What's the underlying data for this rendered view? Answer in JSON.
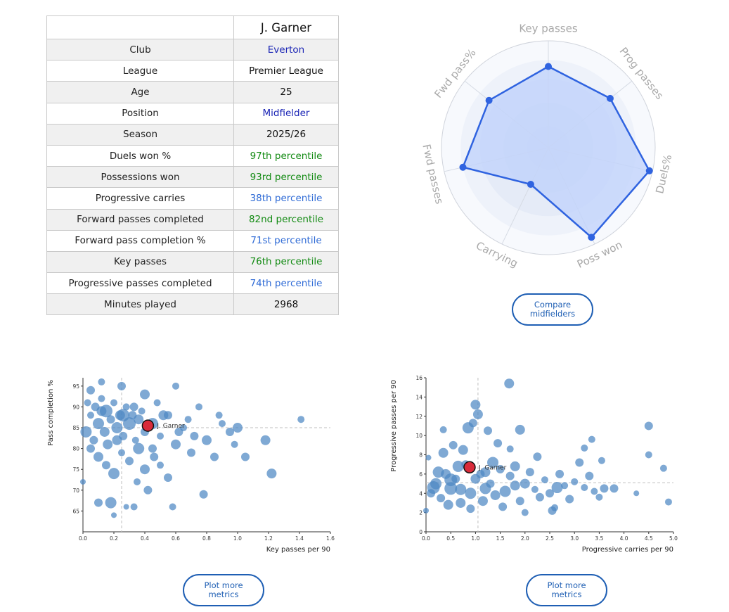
{
  "player": {
    "name": "J. Garner"
  },
  "table": {
    "rows": [
      {
        "label": "Club",
        "value": "Everton",
        "style": "link"
      },
      {
        "label": "League",
        "value": "Premier League",
        "style": "plain"
      },
      {
        "label": "Age",
        "value": "25",
        "style": "plain"
      },
      {
        "label": "Position",
        "value": "Midfielder",
        "style": "link"
      },
      {
        "label": "Season",
        "value": "2025/26",
        "style": "plain"
      },
      {
        "label": "Duels won %",
        "value": "97th percentile",
        "style": "pct-high"
      },
      {
        "label": "Possessions won",
        "value": "93rd percentile",
        "style": "pct-high"
      },
      {
        "label": "Progressive carries",
        "value": "38th percentile",
        "style": "pct-mid"
      },
      {
        "label": "Forward passes completed",
        "value": "82nd percentile",
        "style": "pct-high"
      },
      {
        "label": "Forward pass completion %",
        "value": "71st percentile",
        "style": "pct-mid"
      },
      {
        "label": "Key passes",
        "value": "76th percentile",
        "style": "pct-high"
      },
      {
        "label": "Progressive passes completed",
        "value": "74th percentile",
        "style": "pct-mid"
      },
      {
        "label": "Minutes played",
        "value": "2968",
        "style": "plain"
      }
    ]
  },
  "buttons": {
    "compare": "Compare midfielders",
    "plot_more_1": "Plot more metrics",
    "plot_more_2": "Plot more metrics"
  },
  "colors": {
    "link": "#1a24b5",
    "pct_high": "#128a12",
    "pct_mid": "#2f6bd6",
    "radar_line": "#2f63e0",
    "radar_fill": "#c2d3fb",
    "bubble": "#4d88c4",
    "highlight": "#d92b3a",
    "button": "#1f5fb4"
  },
  "chart_data": [
    {
      "type": "radar",
      "title": "",
      "axes": [
        "Key passes",
        "Prog passes",
        "Duels%",
        "Poss won",
        "Carrying",
        "Fwd passes",
        "Fwd pass%"
      ],
      "values": [
        76,
        74,
        97,
        93,
        38,
        82,
        71
      ],
      "range": [
        0,
        100
      ]
    },
    {
      "type": "scatter",
      "title": "",
      "xlabel": "Key passes per 90",
      "ylabel": "Pass completion %",
      "xlim": [
        0,
        1.6
      ],
      "ylim": [
        60,
        97
      ],
      "xticks": [
        "0.0",
        "0.2",
        "0.4",
        "0.6",
        "0.8",
        "1.0",
        "1.2",
        "1.4",
        "1.6"
      ],
      "yticks": [
        "65",
        "70",
        "75",
        "80",
        "85",
        "90",
        "95"
      ],
      "reference_lines": {
        "x": 0.25,
        "y": 85
      },
      "highlight": {
        "label": "J. Garner",
        "x": 0.42,
        "y": 85.5
      },
      "points": [
        {
          "x": 0.05,
          "y": 88,
          "s": 5
        },
        {
          "x": 0.08,
          "y": 90,
          "s": 6
        },
        {
          "x": 0.1,
          "y": 86,
          "s": 8
        },
        {
          "x": 0.12,
          "y": 92,
          "s": 5
        },
        {
          "x": 0.14,
          "y": 84,
          "s": 7
        },
        {
          "x": 0.15,
          "y": 89,
          "s": 9
        },
        {
          "x": 0.18,
          "y": 87,
          "s": 6
        },
        {
          "x": 0.2,
          "y": 91,
          "s": 5
        },
        {
          "x": 0.22,
          "y": 85,
          "s": 8
        },
        {
          "x": 0.24,
          "y": 88,
          "s": 7
        },
        {
          "x": 0.26,
          "y": 83,
          "s": 6
        },
        {
          "x": 0.28,
          "y": 90,
          "s": 5
        },
        {
          "x": 0.3,
          "y": 86,
          "s": 9
        },
        {
          "x": 0.32,
          "y": 88,
          "s": 6
        },
        {
          "x": 0.34,
          "y": 82,
          "s": 5
        },
        {
          "x": 0.36,
          "y": 87,
          "s": 7
        },
        {
          "x": 0.38,
          "y": 89,
          "s": 5
        },
        {
          "x": 0.4,
          "y": 84,
          "s": 6
        },
        {
          "x": 0.45,
          "y": 86,
          "s": 8
        },
        {
          "x": 0.5,
          "y": 83,
          "s": 5
        },
        {
          "x": 0.55,
          "y": 88,
          "s": 6
        },
        {
          "x": 0.6,
          "y": 81,
          "s": 7
        },
        {
          "x": 0.65,
          "y": 85,
          "s": 5
        },
        {
          "x": 0.7,
          "y": 79,
          "s": 6
        },
        {
          "x": 0.75,
          "y": 90,
          "s": 5
        },
        {
          "x": 0.8,
          "y": 82,
          "s": 7
        },
        {
          "x": 0.85,
          "y": 78,
          "s": 6
        },
        {
          "x": 0.9,
          "y": 86,
          "s": 5
        },
        {
          "x": 0.95,
          "y": 84,
          "s": 6
        },
        {
          "x": 1.0,
          "y": 85,
          "s": 7
        },
        {
          "x": 1.05,
          "y": 78,
          "s": 6
        },
        {
          "x": 1.18,
          "y": 82,
          "s": 7
        },
        {
          "x": 1.22,
          "y": 74,
          "s": 7
        },
        {
          "x": 1.41,
          "y": 87,
          "s": 5
        },
        {
          "x": 0.05,
          "y": 80,
          "s": 6
        },
        {
          "x": 0.1,
          "y": 78,
          "s": 7
        },
        {
          "x": 0.15,
          "y": 76,
          "s": 6
        },
        {
          "x": 0.2,
          "y": 74,
          "s": 8
        },
        {
          "x": 0.25,
          "y": 79,
          "s": 5
        },
        {
          "x": 0.3,
          "y": 77,
          "s": 6
        },
        {
          "x": 0.35,
          "y": 72,
          "s": 5
        },
        {
          "x": 0.4,
          "y": 75,
          "s": 7
        },
        {
          "x": 0.45,
          "y": 80,
          "s": 6
        },
        {
          "x": 0.5,
          "y": 76,
          "s": 5
        },
        {
          "x": 0.55,
          "y": 73,
          "s": 6
        },
        {
          "x": 0.1,
          "y": 67,
          "s": 6
        },
        {
          "x": 0.18,
          "y": 67,
          "s": 8
        },
        {
          "x": 0.2,
          "y": 64,
          "s": 4
        },
        {
          "x": 0.28,
          "y": 66,
          "s": 4
        },
        {
          "x": 0.33,
          "y": 66,
          "s": 5
        },
        {
          "x": 0.42,
          "y": 70,
          "s": 6
        },
        {
          "x": 0.58,
          "y": 66,
          "s": 5
        },
        {
          "x": 0.78,
          "y": 69,
          "s": 6
        },
        {
          "x": 0.0,
          "y": 72,
          "s": 4
        },
        {
          "x": 0.05,
          "y": 94,
          "s": 6
        },
        {
          "x": 0.12,
          "y": 96,
          "s": 5
        },
        {
          "x": 0.25,
          "y": 95,
          "s": 6
        },
        {
          "x": 0.4,
          "y": 93,
          "s": 7
        },
        {
          "x": 0.6,
          "y": 95,
          "s": 5
        },
        {
          "x": 0.02,
          "y": 84,
          "s": 8
        },
        {
          "x": 0.07,
          "y": 82,
          "s": 6
        },
        {
          "x": 0.16,
          "y": 81,
          "s": 7
        },
        {
          "x": 0.26,
          "y": 88,
          "s": 9
        },
        {
          "x": 0.33,
          "y": 90,
          "s": 6
        },
        {
          "x": 0.48,
          "y": 91,
          "s": 5
        },
        {
          "x": 0.52,
          "y": 88,
          "s": 7
        },
        {
          "x": 0.62,
          "y": 84,
          "s": 6
        },
        {
          "x": 0.68,
          "y": 87,
          "s": 5
        },
        {
          "x": 0.72,
          "y": 83,
          "s": 6
        },
        {
          "x": 0.88,
          "y": 88,
          "s": 5
        },
        {
          "x": 0.98,
          "y": 81,
          "s": 5
        },
        {
          "x": 0.46,
          "y": 78,
          "s": 6
        },
        {
          "x": 0.36,
          "y": 80,
          "s": 8
        },
        {
          "x": 0.22,
          "y": 82,
          "s": 7
        },
        {
          "x": 0.12,
          "y": 89,
          "s": 7
        },
        {
          "x": 0.03,
          "y": 91,
          "s": 5
        }
      ]
    },
    {
      "type": "scatter",
      "title": "",
      "xlabel": "Progressive carries per 90",
      "ylabel": "Progressive passes per 90",
      "xlim": [
        0,
        5.0
      ],
      "ylim": [
        0,
        16
      ],
      "xticks": [
        "0.0",
        "0.5",
        "1.0",
        "1.5",
        "2.0",
        "2.5",
        "3.0",
        "3.5",
        "4.0",
        "4.5",
        "5.0"
      ],
      "yticks": [
        "0",
        "2",
        "4",
        "6",
        "8",
        "10",
        "12",
        "14",
        "16"
      ],
      "reference_lines": {
        "x": 1.05,
        "y": 5.1
      },
      "highlight": {
        "label": "J. Garner",
        "x": 0.88,
        "y": 6.7
      },
      "points": [
        {
          "x": 0.1,
          "y": 4,
          "s": 6
        },
        {
          "x": 0.2,
          "y": 5,
          "s": 8
        },
        {
          "x": 0.3,
          "y": 3.5,
          "s": 6
        },
        {
          "x": 0.4,
          "y": 6,
          "s": 7
        },
        {
          "x": 0.5,
          "y": 4.5,
          "s": 9
        },
        {
          "x": 0.6,
          "y": 5.5,
          "s": 6
        },
        {
          "x": 0.7,
          "y": 3,
          "s": 7
        },
        {
          "x": 0.8,
          "y": 7,
          "s": 6
        },
        {
          "x": 0.9,
          "y": 4,
          "s": 8
        },
        {
          "x": 1.0,
          "y": 5.5,
          "s": 7
        },
        {
          "x": 1.1,
          "y": 6,
          "s": 6
        },
        {
          "x": 1.2,
          "y": 4.5,
          "s": 8
        },
        {
          "x": 1.3,
          "y": 5,
          "s": 6
        },
        {
          "x": 1.4,
          "y": 3.8,
          "s": 7
        },
        {
          "x": 1.5,
          "y": 6.5,
          "s": 6
        },
        {
          "x": 1.6,
          "y": 4.2,
          "s": 8
        },
        {
          "x": 1.7,
          "y": 5.8,
          "s": 6
        },
        {
          "x": 1.8,
          "y": 4.8,
          "s": 7
        },
        {
          "x": 1.9,
          "y": 3.2,
          "s": 6
        },
        {
          "x": 2.0,
          "y": 5,
          "s": 7
        },
        {
          "x": 2.1,
          "y": 6.2,
          "s": 6
        },
        {
          "x": 2.2,
          "y": 4.4,
          "s": 5
        },
        {
          "x": 2.3,
          "y": 3.6,
          "s": 6
        },
        {
          "x": 2.4,
          "y": 5.4,
          "s": 5
        },
        {
          "x": 2.5,
          "y": 4,
          "s": 6
        },
        {
          "x": 2.6,
          "y": 2.5,
          "s": 5
        },
        {
          "x": 2.7,
          "y": 6,
          "s": 6
        },
        {
          "x": 2.8,
          "y": 4.8,
          "s": 5
        },
        {
          "x": 2.9,
          "y": 3.4,
          "s": 6
        },
        {
          "x": 3.0,
          "y": 5.2,
          "s": 5
        },
        {
          "x": 3.1,
          "y": 7.2,
          "s": 6
        },
        {
          "x": 3.2,
          "y": 4.6,
          "s": 5
        },
        {
          "x": 3.3,
          "y": 5.8,
          "s": 6
        },
        {
          "x": 3.4,
          "y": 4.2,
          "s": 5
        },
        {
          "x": 3.5,
          "y": 3.6,
          "s": 5
        },
        {
          "x": 3.6,
          "y": 4.5,
          "s": 6
        },
        {
          "x": 0.35,
          "y": 8.2,
          "s": 7
        },
        {
          "x": 0.55,
          "y": 9,
          "s": 6
        },
        {
          "x": 0.75,
          "y": 8.5,
          "s": 7
        },
        {
          "x": 0.95,
          "y": 11.3,
          "s": 6
        },
        {
          "x": 1.05,
          "y": 12.2,
          "s": 7
        },
        {
          "x": 1.25,
          "y": 10.5,
          "s": 6
        },
        {
          "x": 1.45,
          "y": 9.2,
          "s": 6
        },
        {
          "x": 1.7,
          "y": 8.6,
          "s": 5
        },
        {
          "x": 1.9,
          "y": 10.6,
          "s": 7
        },
        {
          "x": 0.85,
          "y": 10.8,
          "s": 8
        },
        {
          "x": 1.0,
          "y": 13.2,
          "s": 7
        },
        {
          "x": 0.35,
          "y": 10.6,
          "s": 5
        },
        {
          "x": 1.68,
          "y": 15.4,
          "s": 7
        },
        {
          "x": 3.35,
          "y": 9.6,
          "s": 5
        },
        {
          "x": 3.2,
          "y": 8.7,
          "s": 5
        },
        {
          "x": 4.5,
          "y": 11,
          "s": 6
        },
        {
          "x": 4.5,
          "y": 8,
          "s": 5
        },
        {
          "x": 4.8,
          "y": 6.6,
          "s": 5
        },
        {
          "x": 4.9,
          "y": 3.1,
          "s": 5
        },
        {
          "x": 4.25,
          "y": 4,
          "s": 4
        },
        {
          "x": 3.8,
          "y": 4.5,
          "s": 6
        },
        {
          "x": 3.55,
          "y": 7.4,
          "s": 5
        },
        {
          "x": 0.05,
          "y": 7.7,
          "s": 4
        },
        {
          "x": 0.0,
          "y": 2.2,
          "s": 4
        },
        {
          "x": 0.15,
          "y": 4.6,
          "s": 9
        },
        {
          "x": 0.45,
          "y": 2.8,
          "s": 7
        },
        {
          "x": 0.65,
          "y": 6.8,
          "s": 8
        },
        {
          "x": 0.9,
          "y": 2.4,
          "s": 6
        },
        {
          "x": 1.15,
          "y": 3.2,
          "s": 7
        },
        {
          "x": 1.35,
          "y": 7.2,
          "s": 8
        },
        {
          "x": 1.55,
          "y": 2.6,
          "s": 6
        },
        {
          "x": 1.8,
          "y": 6.8,
          "s": 7
        },
        {
          "x": 2.0,
          "y": 2.0,
          "s": 5
        },
        {
          "x": 2.25,
          "y": 7.8,
          "s": 6
        },
        {
          "x": 2.55,
          "y": 2.2,
          "s": 6
        },
        {
          "x": 2.65,
          "y": 4.6,
          "s": 8
        },
        {
          "x": 0.25,
          "y": 6.2,
          "s": 8
        },
        {
          "x": 0.5,
          "y": 5.4,
          "s": 9
        },
        {
          "x": 0.7,
          "y": 4.4,
          "s": 8
        },
        {
          "x": 1.2,
          "y": 6.2,
          "s": 7
        }
      ]
    }
  ]
}
